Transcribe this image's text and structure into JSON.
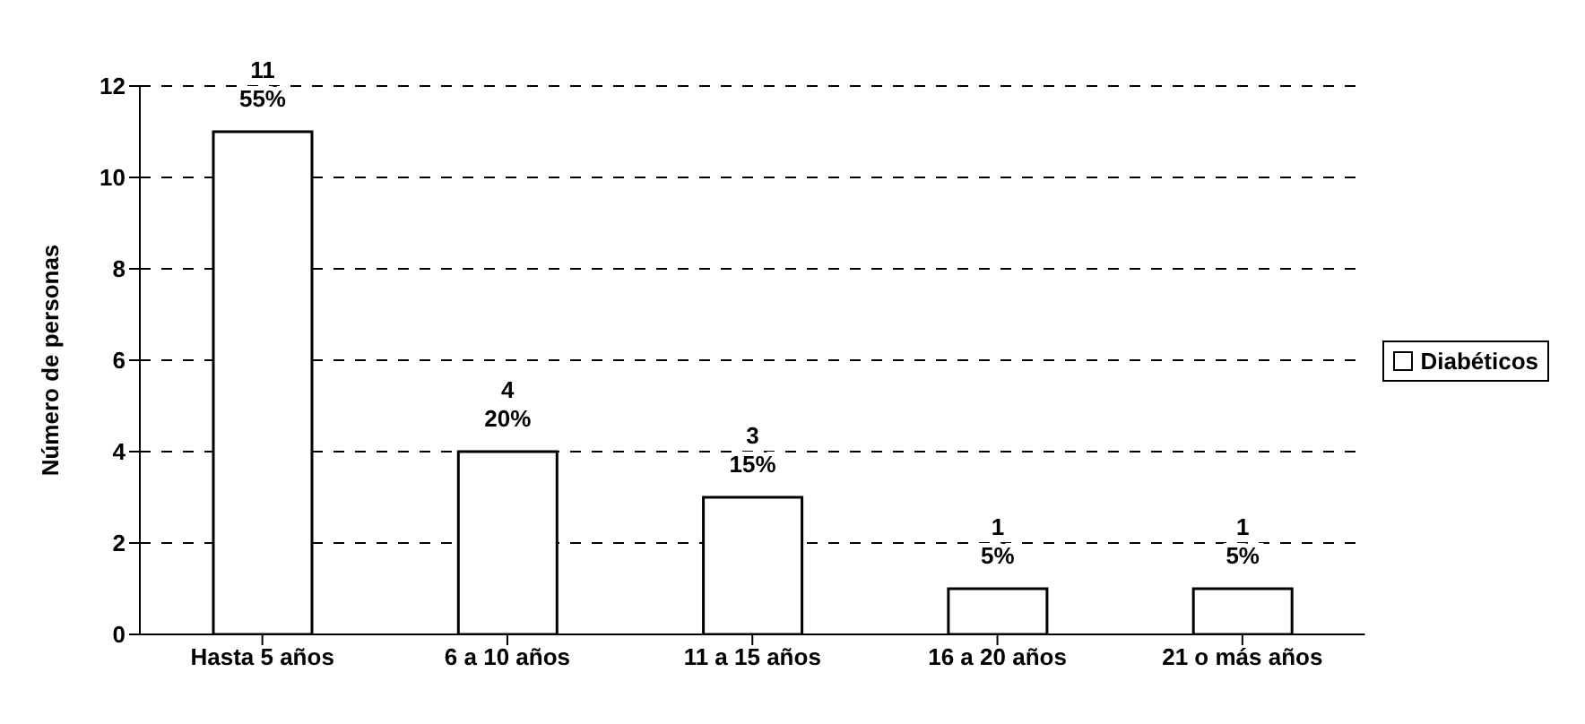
{
  "chart_data": {
    "type": "bar",
    "categories": [
      "Hasta 5 años",
      "6 a 10 años",
      "11 a 15 años",
      "16 a 20 años",
      "21 o más años"
    ],
    "series": [
      {
        "name": "Diabéticos",
        "color": "#ffffff",
        "values": [
          11,
          4,
          3,
          1,
          1
        ],
        "value_labels": [
          "11\n55%",
          "4\n20%",
          "3\n15%",
          "1\n5%",
          "1\n5%"
        ]
      }
    ],
    "ylabel": "Número de personas",
    "ylim": [
      0,
      12
    ],
    "yticks": [
      0,
      2,
      4,
      6,
      8,
      10,
      12
    ],
    "grid": "y",
    "legend": "right"
  }
}
